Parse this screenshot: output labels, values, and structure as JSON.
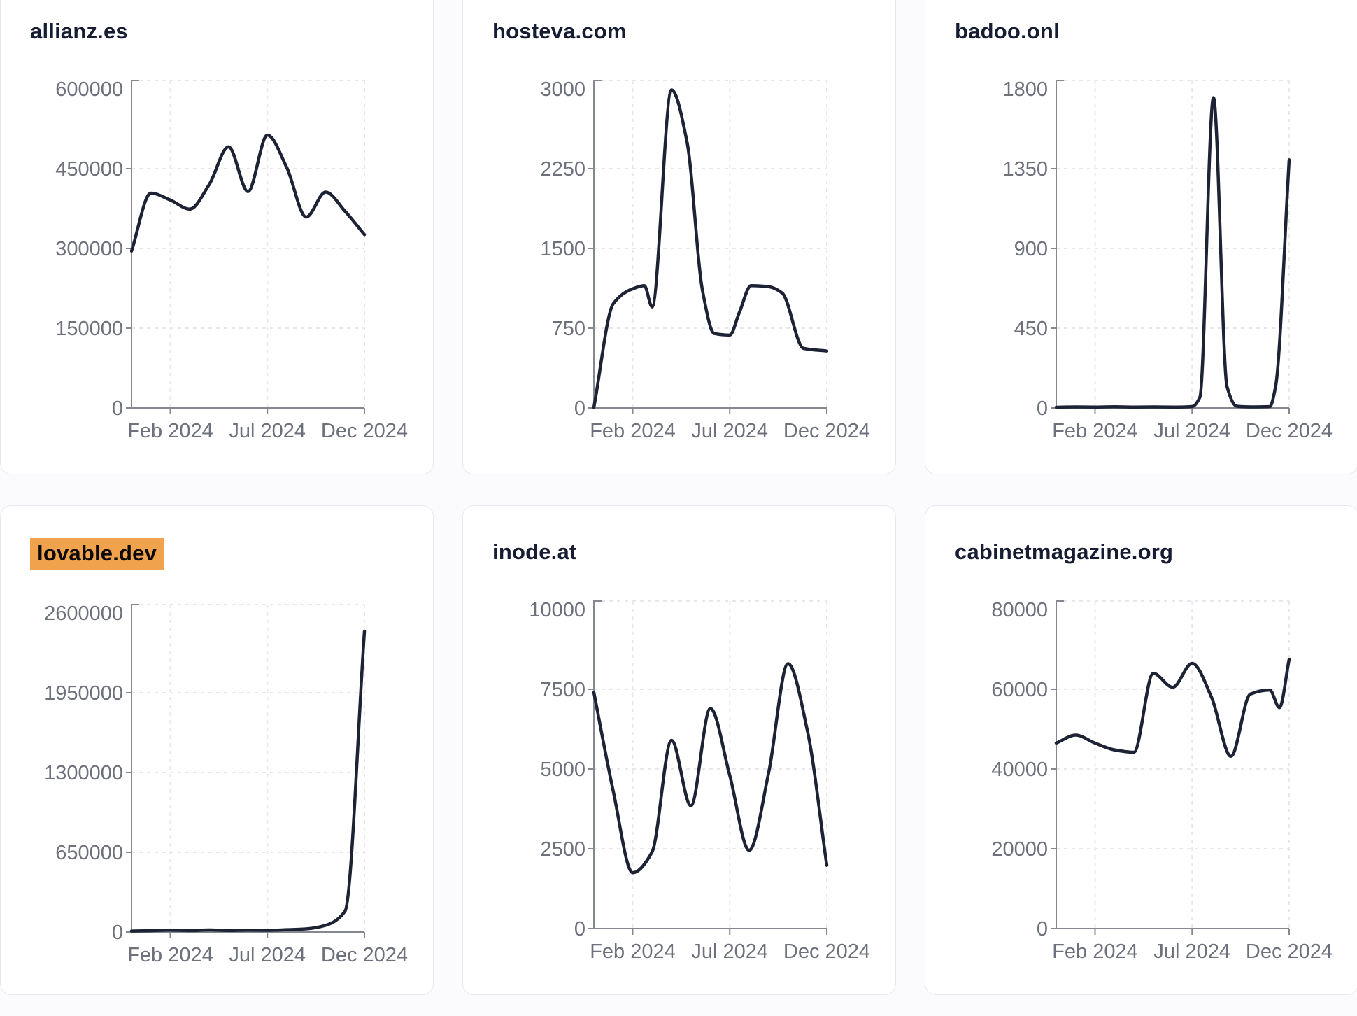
{
  "page": {
    "background": "#fbfbfd"
  },
  "colors": {
    "line": "#1d2335",
    "title": "#161d33",
    "highlight_bg": "#f0a24d",
    "highlight_text": "#0a0a0a",
    "tick_text": "#6d717c",
    "axis": "#85898f",
    "gridline": "#e7e7ee",
    "card_border": "#e8e8f0",
    "card_bg": "#ffffff"
  },
  "chart_data": [
    {
      "type": "line",
      "title": "allianz.es",
      "highlighted": false,
      "ylim": [
        0,
        600000
      ],
      "y_tick_labels": [
        "600000",
        "450000",
        "300000",
        "150000",
        "0"
      ],
      "y_tick_values": [
        600000,
        450000,
        300000,
        150000,
        0
      ],
      "x_tick_labels": [
        "Feb 2024",
        "Jul 2024",
        "Dec 2024"
      ],
      "x_tick_months": [
        2,
        7,
        12
      ],
      "x_months": [
        0,
        1,
        2,
        3,
        4,
        5,
        6,
        7,
        8,
        9,
        10,
        11,
        12
      ],
      "values": [
        295000,
        404000,
        391000,
        374000,
        420000,
        491000,
        407000,
        513000,
        452000,
        359000,
        406000,
        370000,
        326000
      ],
      "grid": true,
      "legend": "none"
    },
    {
      "type": "line",
      "title": "hosteva.com",
      "highlighted": false,
      "ylim": [
        0,
        3000
      ],
      "y_tick_labels": [
        "3000",
        "2250",
        "1500",
        "750",
        "0"
      ],
      "y_tick_values": [
        3000,
        2250,
        1500,
        750,
        0
      ],
      "x_tick_labels": [
        "Feb 2024",
        "Jul 2024",
        "Dec 2024"
      ],
      "x_tick_months": [
        2,
        7,
        12
      ],
      "x_months": [
        0,
        1,
        2,
        2.6,
        3,
        4,
        4.8,
        5.6,
        6.2,
        7,
        7.5,
        8.1,
        9,
        9.7,
        10.8,
        12
      ],
      "values": [
        5,
        980,
        1120,
        1150,
        950,
        2990,
        2500,
        1100,
        700,
        685,
        900,
        1150,
        1140,
        1080,
        560,
        535
      ],
      "grid": true,
      "legend": "none"
    },
    {
      "type": "line",
      "title": "badoo.onl",
      "highlighted": false,
      "ylim": [
        0,
        1800
      ],
      "y_tick_labels": [
        "1800",
        "1350",
        "900",
        "450",
        "0"
      ],
      "y_tick_values": [
        1800,
        1350,
        900,
        450,
        0
      ],
      "x_tick_labels": [
        "Feb 2024",
        "Jul 2024",
        "Dec 2024"
      ],
      "x_tick_months": [
        2,
        7,
        12
      ],
      "x_months": [
        0,
        1,
        2,
        3,
        4,
        5,
        6,
        7,
        7.4,
        8.1,
        8.8,
        9.3,
        10,
        11,
        11.3,
        12
      ],
      "values": [
        4,
        6,
        5,
        7,
        5,
        6,
        5,
        8,
        60,
        1750,
        120,
        10,
        6,
        8,
        120,
        1400
      ],
      "grid": true,
      "legend": "none"
    },
    {
      "type": "line",
      "title": "lovable.dev",
      "highlighted": true,
      "ylim": [
        0,
        2600000
      ],
      "y_tick_labels": [
        "2600000",
        "1950000",
        "1300000",
        "650000",
        "0"
      ],
      "y_tick_values": [
        2600000,
        1950000,
        1300000,
        650000,
        0
      ],
      "x_tick_labels": [
        "Feb 2024",
        "Jul 2024",
        "Dec 2024"
      ],
      "x_tick_months": [
        2,
        7,
        12
      ],
      "x_months": [
        0,
        1,
        2,
        3,
        4,
        5,
        6,
        7,
        8,
        9,
        10,
        11,
        12
      ],
      "values": [
        8000,
        11000,
        16000,
        12000,
        17000,
        13000,
        16000,
        14000,
        19000,
        26000,
        55000,
        170000,
        2450000
      ],
      "grid": true,
      "legend": "none"
    },
    {
      "type": "line",
      "title": "inode.at",
      "highlighted": false,
      "ylim": [
        0,
        10000
      ],
      "y_tick_labels": [
        "10000",
        "7500",
        "5000",
        "2500",
        "0"
      ],
      "y_tick_values": [
        10000,
        7500,
        5000,
        2500,
        0
      ],
      "x_tick_labels": [
        "Feb 2024",
        "Jul 2024",
        "Dec 2024"
      ],
      "x_tick_months": [
        2,
        7,
        12
      ],
      "x_months": [
        0,
        1,
        2,
        3,
        4,
        5,
        6,
        7,
        8,
        9,
        10,
        11,
        12
      ],
      "values": [
        7400,
        4300,
        1750,
        2400,
        5900,
        3850,
        6900,
        4800,
        2450,
        4870,
        8300,
        6200,
        1980
      ],
      "grid": true,
      "legend": "none"
    },
    {
      "type": "line",
      "title": "cabinetmagazine.org",
      "highlighted": false,
      "ylim": [
        0,
        80000
      ],
      "y_tick_labels": [
        "80000",
        "60000",
        "40000",
        "20000",
        "0"
      ],
      "y_tick_values": [
        80000,
        60000,
        40000,
        20000,
        0
      ],
      "x_tick_labels": [
        "Feb 2024",
        "Jul 2024",
        "Dec 2024"
      ],
      "x_tick_months": [
        2,
        7,
        12
      ],
      "x_months": [
        0,
        1,
        2,
        3,
        4,
        5,
        6,
        7,
        8,
        9,
        10,
        11,
        11.5,
        12
      ],
      "values": [
        46500,
        48500,
        46500,
        44800,
        44200,
        64000,
        60500,
        66500,
        58000,
        43200,
        58800,
        59800,
        55400,
        67500
      ],
      "grid": true,
      "legend": "none"
    }
  ]
}
